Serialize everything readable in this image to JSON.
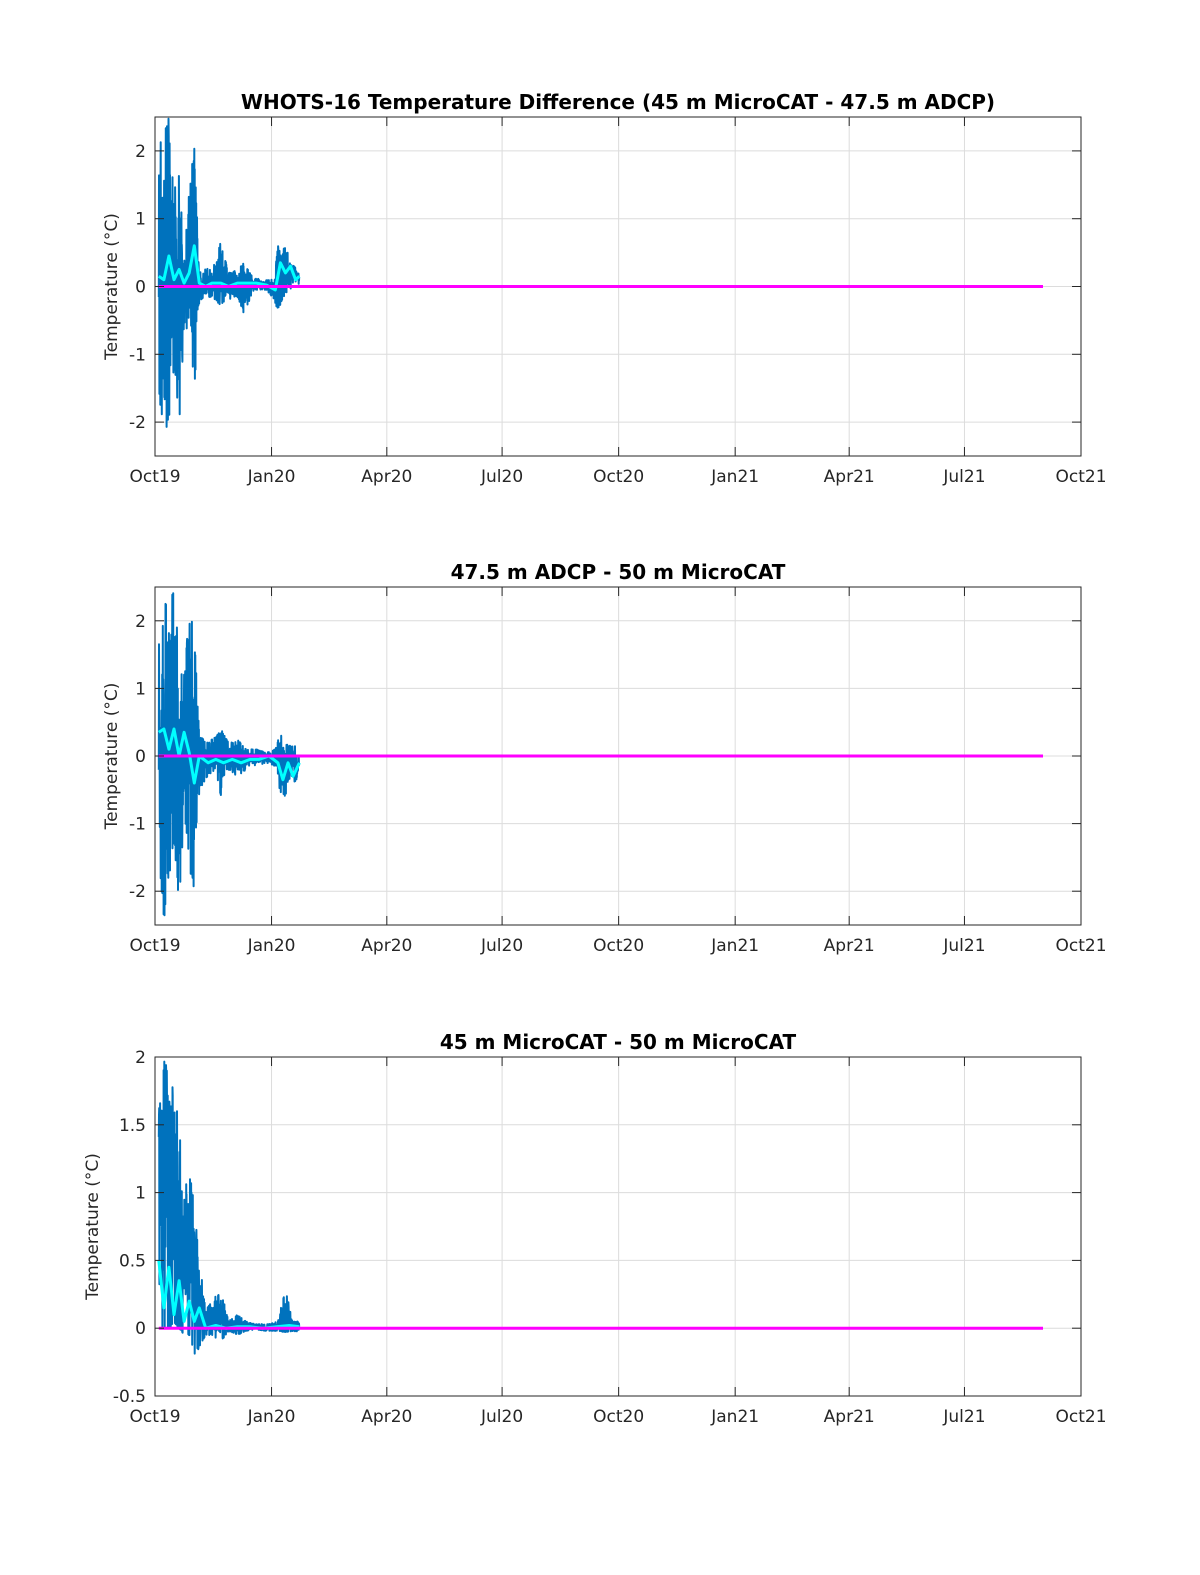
{
  "figure": {
    "colors": {
      "raw": "#0072bd",
      "smoothed": "#00ffff",
      "zero_line": "#ff00ff",
      "grid": "#dcdcdc",
      "axis": "#262626"
    }
  },
  "chart_data": [
    {
      "type": "line",
      "title": "WHOTS-16 Temperature Difference (45 m MicroCAT - 47.5 m ADCP)",
      "xlabel": "",
      "ylabel": "Temperature (°C)",
      "x_ticks": [
        "Oct19",
        "Jan20",
        "Apr20",
        "Jul20",
        "Oct20",
        "Jan21",
        "Apr21",
        "Jul21",
        "Oct21"
      ],
      "xlim": [
        "2019-10-01",
        "2021-10-01"
      ],
      "ylim": [
        -2.5,
        2.5
      ],
      "y_ticks": [
        "-2",
        "-1",
        "0",
        "1",
        "2"
      ],
      "y_tick_values": [
        -2,
        -1,
        0,
        1,
        2
      ],
      "grid": true,
      "series": [
        {
          "color": "#0072bd",
          "style": "raw",
          "envelope": [
            [
              "2019-10-04",
              -1.5,
              2.2
            ],
            [
              "2019-10-08",
              -2.5,
              2.5
            ],
            [
              "2019-10-12",
              -2.0,
              2.5
            ],
            [
              "2019-10-16",
              -1.2,
              1.4
            ],
            [
              "2019-10-20",
              -2.1,
              1.8
            ],
            [
              "2019-10-24",
              -0.6,
              0.4
            ],
            [
              "2019-10-28",
              -0.8,
              1.4
            ],
            [
              "2019-11-01",
              -1.6,
              2.15
            ],
            [
              "2019-11-05",
              -0.2,
              0.3
            ],
            [
              "2019-11-15",
              -0.15,
              0.25
            ],
            [
              "2019-11-22",
              -0.3,
              0.7
            ],
            [
              "2019-11-28",
              -0.2,
              0.2
            ],
            [
              "2019-12-05",
              -0.15,
              0.25
            ],
            [
              "2019-12-10",
              -0.4,
              0.35
            ],
            [
              "2019-12-18",
              -0.05,
              0.12
            ],
            [
              "2019-12-28",
              -0.05,
              0.1
            ],
            [
              "2020-01-03",
              -0.2,
              0.1
            ],
            [
              "2020-01-06",
              -0.38,
              0.6
            ],
            [
              "2020-01-12",
              -0.1,
              0.6
            ],
            [
              "2020-01-18",
              0.0,
              0.35
            ],
            [
              "2020-01-23",
              0.05,
              0.2
            ]
          ]
        },
        {
          "color": "#00ffff",
          "style": "smoothed",
          "points": [
            [
              "2019-10-04",
              0.15
            ],
            [
              "2019-10-08",
              0.1
            ],
            [
              "2019-10-12",
              0.45
            ],
            [
              "2019-10-16",
              0.1
            ],
            [
              "2019-10-20",
              0.25
            ],
            [
              "2019-10-24",
              0.05
            ],
            [
              "2019-10-28",
              0.2
            ],
            [
              "2019-11-01",
              0.6
            ],
            [
              "2019-11-05",
              0.05
            ],
            [
              "2019-11-10",
              0.0
            ],
            [
              "2019-11-15",
              0.05
            ],
            [
              "2019-11-22",
              0.05
            ],
            [
              "2019-11-28",
              0.0
            ],
            [
              "2019-12-05",
              0.05
            ],
            [
              "2019-12-12",
              0.05
            ],
            [
              "2019-12-20",
              0.05
            ],
            [
              "2019-12-28",
              0.02
            ],
            [
              "2020-01-04",
              -0.05
            ],
            [
              "2020-01-08",
              0.35
            ],
            [
              "2020-01-12",
              0.2
            ],
            [
              "2020-01-16",
              0.3
            ],
            [
              "2020-01-20",
              0.1
            ],
            [
              "2020-01-23",
              0.15
            ]
          ]
        },
        {
          "color": "#ff00ff",
          "style": "zero",
          "points": [
            [
              "2019-10-04",
              0
            ],
            [
              "2021-09-01",
              0
            ]
          ]
        }
      ]
    },
    {
      "type": "line",
      "title": "47.5 m ADCP - 50 m MicroCAT",
      "xlabel": "",
      "ylabel": "Temperature (°C)",
      "x_ticks": [
        "Oct19",
        "Jan20",
        "Apr20",
        "Jul20",
        "Oct20",
        "Jan21",
        "Apr21",
        "Jul21",
        "Oct21"
      ],
      "xlim": [
        "2019-10-01",
        "2021-10-01"
      ],
      "ylim": [
        -2.5,
        2.5
      ],
      "y_ticks": [
        "-2",
        "-1",
        "0",
        "1",
        "2"
      ],
      "y_tick_values": [
        -2,
        -1,
        0,
        1,
        2
      ],
      "grid": true,
      "series": [
        {
          "color": "#0072bd",
          "style": "raw",
          "envelope": [
            [
              "2019-10-04",
              -1.5,
              2.5
            ],
            [
              "2019-10-08",
              -2.5,
              2.2
            ],
            [
              "2019-10-12",
              -1.8,
              2.5
            ],
            [
              "2019-10-16",
              -1.3,
              2.5
            ],
            [
              "2019-10-20",
              -2.3,
              1.5
            ],
            [
              "2019-10-24",
              -0.8,
              1.2
            ],
            [
              "2019-10-28",
              -1.7,
              2.3
            ],
            [
              "2019-11-01",
              -2.15,
              1.85
            ],
            [
              "2019-11-05",
              -0.5,
              0.3
            ],
            [
              "2019-11-12",
              -0.3,
              0.2
            ],
            [
              "2019-11-18",
              -0.2,
              0.3
            ],
            [
              "2019-11-22",
              -0.65,
              0.4
            ],
            [
              "2019-11-28",
              -0.2,
              0.2
            ],
            [
              "2019-12-05",
              -0.3,
              0.25
            ],
            [
              "2019-12-12",
              -0.2,
              0.1
            ],
            [
              "2019-12-20",
              -0.15,
              0.1
            ],
            [
              "2019-12-28",
              -0.1,
              0.05
            ],
            [
              "2020-01-04",
              -0.15,
              0.1
            ],
            [
              "2020-01-08",
              -0.55,
              0.35
            ],
            [
              "2020-01-12",
              -0.62,
              0.2
            ],
            [
              "2020-01-16",
              -0.3,
              0.15
            ],
            [
              "2020-01-20",
              -0.4,
              0.15
            ],
            [
              "2020-01-23",
              -0.15,
              0.05
            ]
          ]
        },
        {
          "color": "#00ffff",
          "style": "smoothed",
          "points": [
            [
              "2019-10-04",
              0.35
            ],
            [
              "2019-10-08",
              0.4
            ],
            [
              "2019-10-12",
              0.1
            ],
            [
              "2019-10-16",
              0.4
            ],
            [
              "2019-10-20",
              0.0
            ],
            [
              "2019-10-24",
              0.35
            ],
            [
              "2019-10-28",
              0.05
            ],
            [
              "2019-11-01",
              -0.4
            ],
            [
              "2019-11-05",
              0.0
            ],
            [
              "2019-11-12",
              -0.1
            ],
            [
              "2019-11-18",
              -0.05
            ],
            [
              "2019-11-24",
              -0.1
            ],
            [
              "2019-12-01",
              -0.05
            ],
            [
              "2019-12-08",
              -0.1
            ],
            [
              "2019-12-15",
              -0.05
            ],
            [
              "2019-12-22",
              -0.05
            ],
            [
              "2019-12-30",
              0.0
            ],
            [
              "2020-01-06",
              -0.1
            ],
            [
              "2020-01-10",
              -0.35
            ],
            [
              "2020-01-14",
              -0.1
            ],
            [
              "2020-01-18",
              -0.3
            ],
            [
              "2020-01-23",
              -0.1
            ]
          ]
        },
        {
          "color": "#ff00ff",
          "style": "zero",
          "points": [
            [
              "2019-10-04",
              0
            ],
            [
              "2021-09-01",
              0
            ]
          ]
        }
      ]
    },
    {
      "type": "line",
      "title": "45 m MicroCAT - 50 m MicroCAT",
      "xlabel": "",
      "ylabel": "Temperature (°C)",
      "x_ticks": [
        "Oct19",
        "Jan20",
        "Apr20",
        "Jul20",
        "Oct20",
        "Jan21",
        "Apr21",
        "Jul21",
        "Oct21"
      ],
      "xlim": [
        "2019-10-01",
        "2021-10-01"
      ],
      "ylim": [
        -0.5,
        2
      ],
      "y_ticks": [
        "-0.5",
        "0",
        "0.5",
        "1",
        "1.5",
        "2"
      ],
      "y_tick_values": [
        -0.5,
        0,
        0.5,
        1,
        1.5,
        2
      ],
      "grid": true,
      "series": [
        {
          "color": "#0072bd",
          "style": "raw",
          "envelope": [
            [
              "2019-10-04",
              0.0,
              2.0
            ],
            [
              "2019-10-08",
              0.0,
              2.0
            ],
            [
              "2019-10-12",
              0.0,
              1.9
            ],
            [
              "2019-10-16",
              0.05,
              2.0
            ],
            [
              "2019-10-20",
              0.0,
              1.5
            ],
            [
              "2019-10-24",
              -0.05,
              1.0
            ],
            [
              "2019-10-28",
              -0.05,
              1.2
            ],
            [
              "2019-11-01",
              -0.2,
              1.0
            ],
            [
              "2019-11-05",
              -0.15,
              0.5
            ],
            [
              "2019-11-10",
              -0.05,
              0.15
            ],
            [
              "2019-11-15",
              -0.05,
              0.2
            ],
            [
              "2019-11-22",
              -0.1,
              0.3
            ],
            [
              "2019-11-28",
              -0.02,
              0.05
            ],
            [
              "2019-12-05",
              -0.05,
              0.1
            ],
            [
              "2019-12-12",
              -0.02,
              0.05
            ],
            [
              "2019-12-20",
              -0.01,
              0.03
            ],
            [
              "2019-12-28",
              -0.02,
              0.03
            ],
            [
              "2020-01-06",
              -0.02,
              0.05
            ],
            [
              "2020-01-12",
              -0.03,
              0.3
            ],
            [
              "2020-01-18",
              -0.02,
              0.05
            ],
            [
              "2020-01-23",
              -0.03,
              0.05
            ]
          ]
        },
        {
          "color": "#00ffff",
          "style": "smoothed",
          "points": [
            [
              "2019-10-04",
              0.5
            ],
            [
              "2019-10-08",
              0.15
            ],
            [
              "2019-10-12",
              0.45
            ],
            [
              "2019-10-16",
              0.1
            ],
            [
              "2019-10-20",
              0.35
            ],
            [
              "2019-10-24",
              0.05
            ],
            [
              "2019-10-28",
              0.2
            ],
            [
              "2019-11-01",
              0.05
            ],
            [
              "2019-11-05",
              0.15
            ],
            [
              "2019-11-10",
              0.0
            ],
            [
              "2019-11-18",
              0.02
            ],
            [
              "2019-11-26",
              0.0
            ],
            [
              "2019-12-05",
              0.01
            ],
            [
              "2019-12-15",
              0.01
            ],
            [
              "2019-12-25",
              0.0
            ],
            [
              "2020-01-05",
              0.01
            ],
            [
              "2020-01-15",
              0.02
            ],
            [
              "2020-01-23",
              0.01
            ]
          ]
        },
        {
          "color": "#ff00ff",
          "style": "zero",
          "points": [
            [
              "2019-10-04",
              0
            ],
            [
              "2021-09-01",
              0
            ]
          ]
        }
      ]
    }
  ]
}
